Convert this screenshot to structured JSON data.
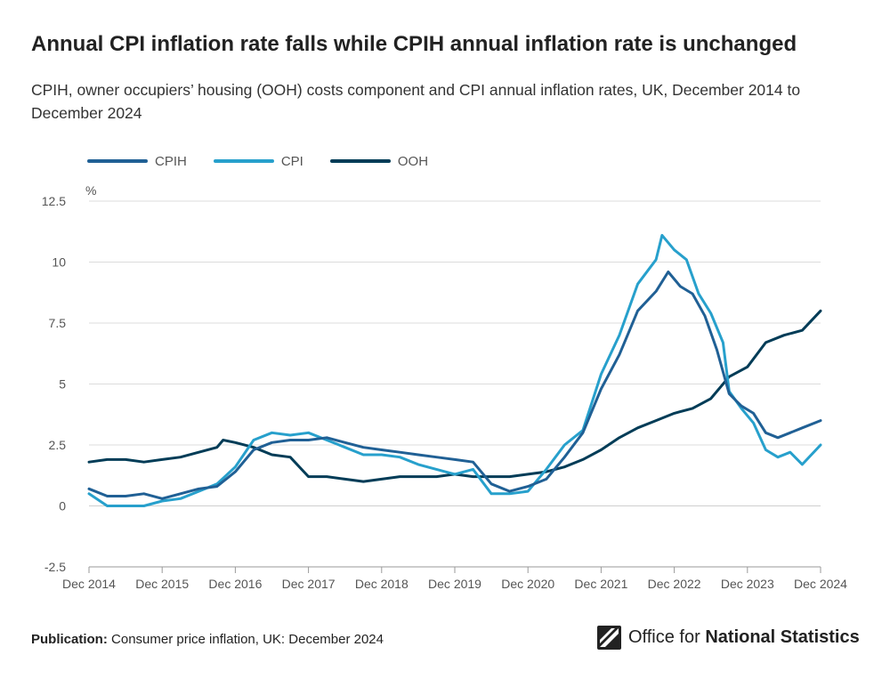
{
  "colors": {
    "cpih": "#206095",
    "cpi": "#27a0cc",
    "ooh": "#003c57",
    "grid": "#dcdcdc",
    "axis": "#9a9a9a",
    "text": "#555555"
  },
  "footer": {
    "label": "Publication:",
    "text": "Consumer price inflation, UK: December 2024"
  },
  "logo": {
    "text_a": "Office for",
    "text_b": "National Statistics",
    "icon": "ons-logo-icon"
  },
  "chart_data": {
    "type": "line",
    "title": "Annual CPI inflation rate falls while CPIH annual inflation rate is unchanged",
    "subtitle": "CPIH, owner occupiers’ housing (OOH) costs component and CPI annual inflation rates, UK, December 2014 to December 2024",
    "ylabel": "%",
    "ylim": [
      -2.5,
      12.5
    ],
    "yticks": [
      -2.5,
      0,
      2.5,
      5,
      7.5,
      10,
      12.5
    ],
    "ytick_labels": [
      "-2.5",
      "0",
      "2.5",
      "5",
      "7.5",
      "10",
      "12.5"
    ],
    "xlim": [
      0,
      120
    ],
    "xtick_positions": [
      0,
      12,
      24,
      36,
      48,
      60,
      72,
      84,
      96,
      108,
      120
    ],
    "xtick_labels": [
      "Dec 2014",
      "Dec 2015",
      "Dec 2016",
      "Dec 2017",
      "Dec 2018",
      "Dec 2019",
      "Dec 2020",
      "Dec 2021",
      "Dec 2022",
      "Dec 2023",
      "Dec 2024"
    ],
    "x_description": "months since December 2014",
    "legend_position": "top-left",
    "series": [
      {
        "name": "CPIH",
        "key": "cpih",
        "points": [
          [
            0,
            0.7
          ],
          [
            3,
            0.4
          ],
          [
            6,
            0.4
          ],
          [
            9,
            0.5
          ],
          [
            12,
            0.3
          ],
          [
            15,
            0.5
          ],
          [
            18,
            0.7
          ],
          [
            21,
            0.8
          ],
          [
            24,
            1.4
          ],
          [
            27,
            2.3
          ],
          [
            30,
            2.6
          ],
          [
            33,
            2.7
          ],
          [
            36,
            2.7
          ],
          [
            39,
            2.8
          ],
          [
            42,
            2.6
          ],
          [
            45,
            2.4
          ],
          [
            48,
            2.3
          ],
          [
            51,
            2.2
          ],
          [
            54,
            2.1
          ],
          [
            57,
            2.0
          ],
          [
            60,
            1.9
          ],
          [
            63,
            1.8
          ],
          [
            66,
            0.9
          ],
          [
            69,
            0.6
          ],
          [
            72,
            0.8
          ],
          [
            75,
            1.1
          ],
          [
            78,
            2.0
          ],
          [
            81,
            3.0
          ],
          [
            84,
            4.8
          ],
          [
            87,
            6.2
          ],
          [
            90,
            8.0
          ],
          [
            93,
            8.8
          ],
          [
            95,
            9.6
          ],
          [
            97,
            9.0
          ],
          [
            99,
            8.7
          ],
          [
            101,
            7.8
          ],
          [
            103,
            6.4
          ],
          [
            105,
            4.6
          ],
          [
            107,
            4.1
          ],
          [
            109,
            3.8
          ],
          [
            111,
            3.0
          ],
          [
            113,
            2.8
          ],
          [
            115,
            3.0
          ],
          [
            117,
            3.2
          ],
          [
            120,
            3.5
          ]
        ]
      },
      {
        "name": "CPI",
        "key": "cpi",
        "points": [
          [
            0,
            0.5
          ],
          [
            3,
            0.0
          ],
          [
            6,
            0.0
          ],
          [
            9,
            0.0
          ],
          [
            12,
            0.2
          ],
          [
            15,
            0.3
          ],
          [
            18,
            0.6
          ],
          [
            21,
            0.9
          ],
          [
            24,
            1.6
          ],
          [
            27,
            2.7
          ],
          [
            30,
            3.0
          ],
          [
            33,
            2.9
          ],
          [
            36,
            3.0
          ],
          [
            39,
            2.7
          ],
          [
            42,
            2.4
          ],
          [
            45,
            2.1
          ],
          [
            48,
            2.1
          ],
          [
            51,
            2.0
          ],
          [
            54,
            1.7
          ],
          [
            57,
            1.5
          ],
          [
            60,
            1.3
          ],
          [
            63,
            1.5
          ],
          [
            66,
            0.5
          ],
          [
            69,
            0.5
          ],
          [
            72,
            0.6
          ],
          [
            75,
            1.5
          ],
          [
            78,
            2.5
          ],
          [
            81,
            3.1
          ],
          [
            84,
            5.4
          ],
          [
            87,
            7.0
          ],
          [
            90,
            9.1
          ],
          [
            93,
            10.1
          ],
          [
            94,
            11.1
          ],
          [
            96,
            10.5
          ],
          [
            98,
            10.1
          ],
          [
            100,
            8.7
          ],
          [
            102,
            7.9
          ],
          [
            104,
            6.7
          ],
          [
            105,
            4.7
          ],
          [
            107,
            4.0
          ],
          [
            109,
            3.4
          ],
          [
            111,
            2.3
          ],
          [
            113,
            2.0
          ],
          [
            115,
            2.2
          ],
          [
            117,
            1.7
          ],
          [
            120,
            2.5
          ]
        ]
      },
      {
        "name": "OOH",
        "key": "ooh",
        "points": [
          [
            0,
            1.8
          ],
          [
            3,
            1.9
          ],
          [
            6,
            1.9
          ],
          [
            9,
            1.8
          ],
          [
            12,
            1.9
          ],
          [
            15,
            2.0
          ],
          [
            18,
            2.2
          ],
          [
            21,
            2.4
          ],
          [
            22,
            2.7
          ],
          [
            24,
            2.6
          ],
          [
            27,
            2.4
          ],
          [
            30,
            2.1
          ],
          [
            33,
            2.0
          ],
          [
            36,
            1.2
          ],
          [
            39,
            1.2
          ],
          [
            42,
            1.1
          ],
          [
            45,
            1.0
          ],
          [
            48,
            1.1
          ],
          [
            51,
            1.2
          ],
          [
            54,
            1.2
          ],
          [
            57,
            1.2
          ],
          [
            60,
            1.3
          ],
          [
            63,
            1.2
          ],
          [
            66,
            1.2
          ],
          [
            69,
            1.2
          ],
          [
            72,
            1.3
          ],
          [
            75,
            1.4
          ],
          [
            78,
            1.6
          ],
          [
            81,
            1.9
          ],
          [
            84,
            2.3
          ],
          [
            87,
            2.8
          ],
          [
            90,
            3.2
          ],
          [
            93,
            3.5
          ],
          [
            96,
            3.8
          ],
          [
            99,
            4.0
          ],
          [
            102,
            4.4
          ],
          [
            105,
            5.3
          ],
          [
            108,
            5.7
          ],
          [
            111,
            6.7
          ],
          [
            114,
            7.0
          ],
          [
            117,
            7.2
          ],
          [
            120,
            8.0
          ]
        ]
      }
    ]
  }
}
